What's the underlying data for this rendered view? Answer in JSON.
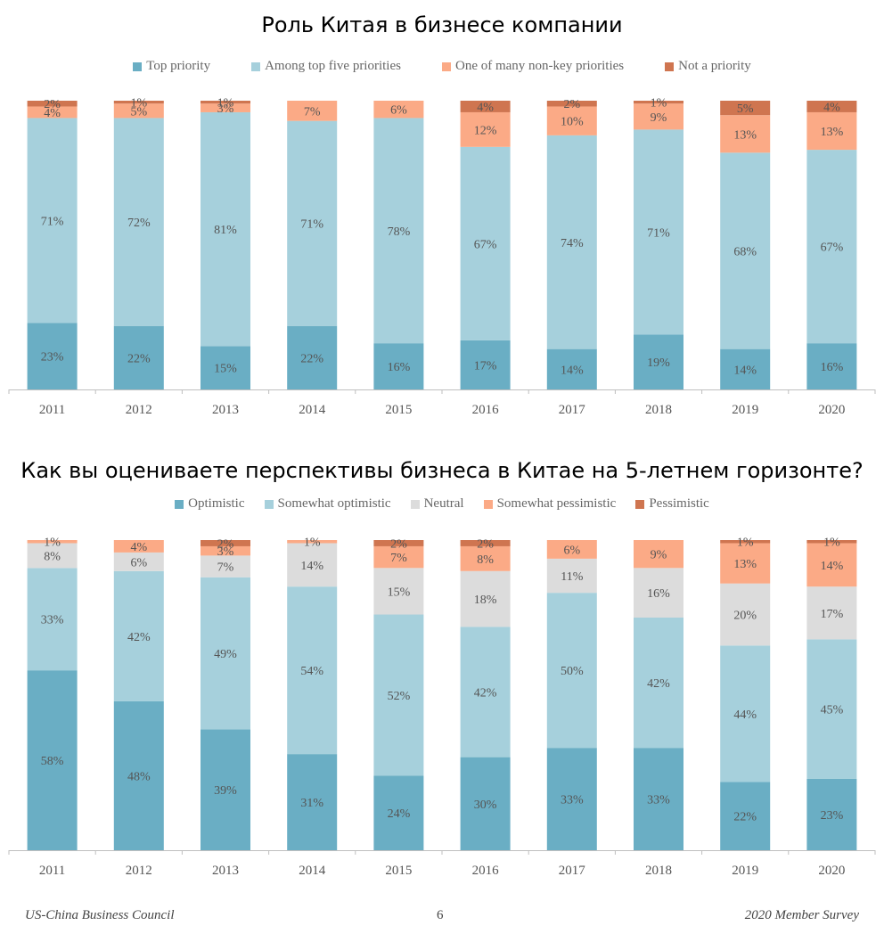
{
  "footer": {
    "left": "US-China Business Council",
    "page": "6",
    "right": "2020 Member Survey"
  },
  "chart_data": [
    {
      "type": "bar",
      "stacked": true,
      "title": "Роль Китая в бизнесе компании",
      "xlabel": "",
      "ylabel": "",
      "ylim": [
        0,
        100
      ],
      "legend_position": "top",
      "categories": [
        "2011",
        "2012",
        "2013",
        "2014",
        "2015",
        "2016",
        "2017",
        "2018",
        "2019",
        "2020"
      ],
      "series": [
        {
          "name": "Top priority",
          "color": "#6aaec4",
          "values": [
            23,
            22,
            15,
            22,
            16,
            17,
            14,
            19,
            14,
            16
          ]
        },
        {
          "name": "Among top five priorities",
          "color": "#a6d0dc",
          "values": [
            71,
            72,
            81,
            71,
            78,
            67,
            74,
            71,
            68,
            67
          ]
        },
        {
          "name": "One of many non-key priorities",
          "color": "#fbaa86",
          "values": [
            4,
            5,
            3,
            7,
            6,
            12,
            10,
            9,
            13,
            13
          ]
        },
        {
          "name": "Not a priority",
          "color": "#cf7550",
          "values": [
            2,
            1,
            1,
            0,
            0,
            4,
            2,
            1,
            5,
            4
          ]
        }
      ]
    },
    {
      "type": "bar",
      "stacked": true,
      "title": "Как вы оцениваете перспективы бизнеса в Китае на 5-летнем горизонте?",
      "xlabel": "",
      "ylabel": "",
      "ylim": [
        0,
        100
      ],
      "legend_position": "top",
      "categories": [
        "2011",
        "2012",
        "2013",
        "2014",
        "2015",
        "2016",
        "2017",
        "2018",
        "2019",
        "2020"
      ],
      "series": [
        {
          "name": "Optimistic",
          "color": "#6aaec4",
          "values": [
            58,
            48,
            39,
            31,
            24,
            30,
            33,
            33,
            22,
            23
          ]
        },
        {
          "name": "Somewhat optimistic",
          "color": "#a6d0dc",
          "values": [
            33,
            42,
            49,
            54,
            52,
            42,
            50,
            42,
            44,
            45
          ]
        },
        {
          "name": "Neutral",
          "color": "#dcdcdc",
          "values": [
            8,
            6,
            7,
            14,
            15,
            18,
            11,
            16,
            20,
            17
          ]
        },
        {
          "name": "Somewhat pessimistic",
          "color": "#fbaa86",
          "values": [
            1,
            4,
            3,
            1,
            7,
            8,
            6,
            9,
            13,
            14
          ]
        },
        {
          "name": "Pessimistic",
          "color": "#cf7550",
          "values": [
            0,
            0,
            2,
            0,
            2,
            2,
            0,
            0,
            1,
            1
          ]
        }
      ]
    }
  ]
}
